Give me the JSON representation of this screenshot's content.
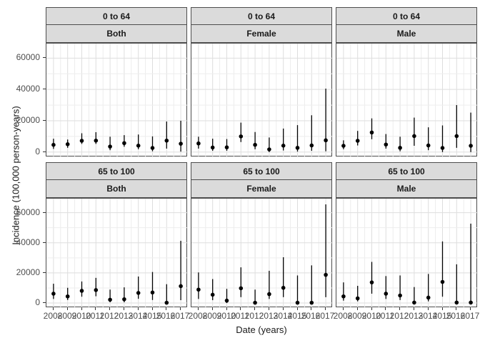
{
  "figure": {
    "x_axis_title": "Date (years)",
    "y_axis_title": "Incidence (100,000 person-years)"
  },
  "style": {
    "point_color": "#000000",
    "strip_bg": "#DBDBDB",
    "panel_border": "#4d4d4d",
    "grid_major": "#DEDEDE",
    "grid_minor": "#EDEDED",
    "tick_label_color": "#4d4d4d"
  },
  "chart_data": {
    "type": "scatter",
    "subtype": "pointrange-faceted",
    "title": "",
    "xlabel": "Date (years)",
    "ylabel": "Incidence (100,000 person-years)",
    "x_labels": [
      "2008",
      "2009",
      "2010",
      "2011",
      "2012",
      "2013",
      "2014",
      "2015",
      "2016",
      "2017"
    ],
    "y_tick_labels": [
      "0",
      "20000",
      "40000",
      "60000"
    ],
    "y_ticks": [
      0,
      20000,
      40000,
      60000
    ],
    "y_minor_ticks": [
      10000,
      30000,
      50000
    ],
    "ylim": [
      -3300,
      69300
    ],
    "grid": true,
    "legend": false,
    "facet_row_labels": [
      "0 to 64",
      "65 to 100"
    ],
    "facet_col_labels": [
      "Both",
      "Female",
      "Male"
    ],
    "facets": [
      {
        "age_group": "0 to 64",
        "sex": "Both",
        "points": [
          {
            "year": 2008,
            "y": 4600,
            "lo": 2000,
            "hi": 8500
          },
          {
            "year": 2009,
            "y": 5000,
            "lo": 2700,
            "hi": 8000
          },
          {
            "year": 2010,
            "y": 7200,
            "lo": 5200,
            "hi": 12000
          },
          {
            "year": 2011,
            "y": 7300,
            "lo": 5200,
            "hi": 12700
          },
          {
            "year": 2012,
            "y": 3500,
            "lo": 1200,
            "hi": 9800
          },
          {
            "year": 2013,
            "y": 5700,
            "lo": 3400,
            "hi": 10800
          },
          {
            "year": 2014,
            "y": 4100,
            "lo": 1800,
            "hi": 11200
          },
          {
            "year": 2015,
            "y": 2600,
            "lo": 500,
            "hi": 10000
          },
          {
            "year": 2016,
            "y": 7300,
            "lo": 2200,
            "hi": 19500
          },
          {
            "year": 2017,
            "y": 5300,
            "lo": 300,
            "hi": 20000
          }
        ]
      },
      {
        "age_group": "0 to 64",
        "sex": "Female",
        "points": [
          {
            "year": 2008,
            "y": 5500,
            "lo": 2200,
            "hi": 9800
          },
          {
            "year": 2009,
            "y": 2900,
            "lo": 800,
            "hi": 8500
          },
          {
            "year": 2010,
            "y": 3000,
            "lo": 800,
            "hi": 8300
          },
          {
            "year": 2011,
            "y": 10000,
            "lo": 6400,
            "hi": 18800
          },
          {
            "year": 2012,
            "y": 4600,
            "lo": 1800,
            "hi": 12800
          },
          {
            "year": 2013,
            "y": 1700,
            "lo": 0,
            "hi": 9300
          },
          {
            "year": 2014,
            "y": 4100,
            "lo": 1000,
            "hi": 15000
          },
          {
            "year": 2015,
            "y": 2700,
            "lo": 300,
            "hi": 17200
          },
          {
            "year": 2016,
            "y": 4200,
            "lo": 800,
            "hi": 23500
          },
          {
            "year": 2017,
            "y": 7500,
            "lo": 500,
            "hi": 40500
          }
        ]
      },
      {
        "age_group": "0 to 64",
        "sex": "Male",
        "points": [
          {
            "year": 2008,
            "y": 4000,
            "lo": 1800,
            "hi": 7500
          },
          {
            "year": 2009,
            "y": 7200,
            "lo": 4200,
            "hi": 13500
          },
          {
            "year": 2010,
            "y": 12500,
            "lo": 8200,
            "hi": 21500
          },
          {
            "year": 2011,
            "y": 4800,
            "lo": 2200,
            "hi": 11500
          },
          {
            "year": 2012,
            "y": 2700,
            "lo": 500,
            "hi": 9800
          },
          {
            "year": 2013,
            "y": 10200,
            "lo": 4000,
            "hi": 22000
          },
          {
            "year": 2014,
            "y": 4200,
            "lo": 1200,
            "hi": 15800
          },
          {
            "year": 2015,
            "y": 2600,
            "lo": 0,
            "hi": 17000
          },
          {
            "year": 2016,
            "y": 10200,
            "lo": 2700,
            "hi": 30000
          },
          {
            "year": 2017,
            "y": 4000,
            "lo": 0,
            "hi": 25200
          }
        ]
      },
      {
        "age_group": "65 to 100",
        "sex": "Both",
        "points": [
          {
            "year": 2008,
            "y": 6200,
            "lo": 2700,
            "hi": 12800
          },
          {
            "year": 2009,
            "y": 4400,
            "lo": 2000,
            "hi": 10100
          },
          {
            "year": 2010,
            "y": 8100,
            "lo": 4200,
            "hi": 14300
          },
          {
            "year": 2011,
            "y": 8600,
            "lo": 4500,
            "hi": 16700
          },
          {
            "year": 2012,
            "y": 2200,
            "lo": 500,
            "hi": 8900
          },
          {
            "year": 2013,
            "y": 2500,
            "lo": 500,
            "hi": 10400
          },
          {
            "year": 2014,
            "y": 6700,
            "lo": 2800,
            "hi": 17600
          },
          {
            "year": 2015,
            "y": 7000,
            "lo": 2000,
            "hi": 20600
          },
          {
            "year": 2016,
            "y": 200,
            "lo": 0,
            "hi": 12500
          },
          {
            "year": 2017,
            "y": 11200,
            "lo": 1900,
            "hi": 41300
          }
        ]
      },
      {
        "age_group": "65 to 100",
        "sex": "Female",
        "points": [
          {
            "year": 2008,
            "y": 8900,
            "lo": 2700,
            "hi": 20300
          },
          {
            "year": 2009,
            "y": 5500,
            "lo": 1900,
            "hi": 15900
          },
          {
            "year": 2010,
            "y": 1600,
            "lo": 0,
            "hi": 9400
          },
          {
            "year": 2011,
            "y": 9800,
            "lo": 3900,
            "hi": 23700
          },
          {
            "year": 2012,
            "y": 200,
            "lo": 0,
            "hi": 8900
          },
          {
            "year": 2013,
            "y": 5900,
            "lo": 2700,
            "hi": 21400
          },
          {
            "year": 2014,
            "y": 10100,
            "lo": 3900,
            "hi": 30400
          },
          {
            "year": 2015,
            "y": 200,
            "lo": 0,
            "hi": 18300
          },
          {
            "year": 2016,
            "y": 200,
            "lo": 0,
            "hi": 25000
          },
          {
            "year": 2017,
            "y": 18700,
            "lo": 3900,
            "hi": 65500
          }
        ]
      },
      {
        "age_group": "65 to 100",
        "sex": "Male",
        "points": [
          {
            "year": 2008,
            "y": 4400,
            "lo": 1600,
            "hi": 13700
          },
          {
            "year": 2009,
            "y": 3100,
            "lo": 1100,
            "hi": 11400
          },
          {
            "year": 2010,
            "y": 13700,
            "lo": 6200,
            "hi": 27300
          },
          {
            "year": 2011,
            "y": 6200,
            "lo": 2700,
            "hi": 17900
          },
          {
            "year": 2012,
            "y": 5000,
            "lo": 2000,
            "hi": 18300
          },
          {
            "year": 2013,
            "y": 300,
            "lo": 0,
            "hi": 10600
          },
          {
            "year": 2014,
            "y": 3600,
            "lo": 1100,
            "hi": 19300
          },
          {
            "year": 2015,
            "y": 14000,
            "lo": 4200,
            "hi": 40900
          },
          {
            "year": 2016,
            "y": 300,
            "lo": 0,
            "hi": 25700
          },
          {
            "year": 2017,
            "y": 300,
            "lo": 0,
            "hi": 52700
          }
        ]
      }
    ]
  }
}
